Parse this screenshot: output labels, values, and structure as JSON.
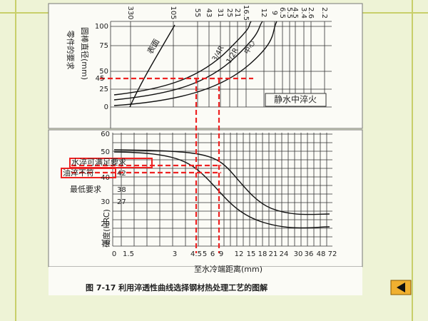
{
  "top_panel": {
    "y_title_1": "零件的要求",
    "y_title_2": "圆棒直径(mm)",
    "top_ticks": [
      "330",
      "105",
      "55",
      "43",
      "31",
      "25",
      "21",
      "16.5",
      "12",
      "9",
      "6.5",
      "5.5",
      "4.5",
      "3.4",
      "2.6",
      "2.2"
    ],
    "y_ticks": [
      "100",
      "75",
      "50",
      "25",
      "0"
    ],
    "marker": "45",
    "curve_labels": [
      "表面",
      "3/4R",
      "1/2R",
      "中心"
    ],
    "note": "静水中淬火"
  },
  "bottom_panel": {
    "y_ticks": [
      "60",
      "50",
      "40",
      "30",
      "20",
      "10"
    ],
    "marks": [
      "42",
      "38",
      "27"
    ],
    "annotations": [
      "水淬可满足要求",
      "油淬不符",
      "最低要求"
    ],
    "y_title": "硬度(HRC)",
    "x_ticks": [
      "0",
      "1.5",
      "3",
      "4.5",
      "5",
      "6",
      "9",
      "12",
      "15",
      "18",
      "21",
      "24",
      "30",
      "36",
      "48",
      "72"
    ],
    "x_title": "至水冷端距离(mm)"
  },
  "caption": "图 7-17   利用淬透性曲线选择钢材热处理工艺的图解"
}
